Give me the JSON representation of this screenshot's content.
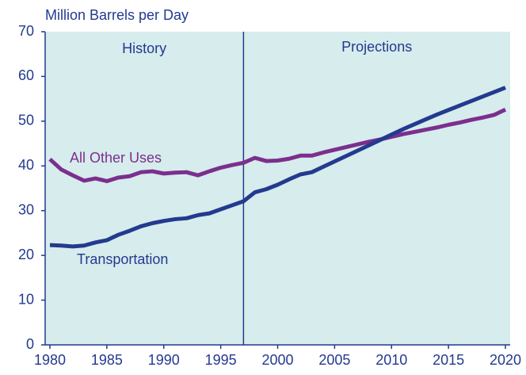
{
  "chart_data": {
    "type": "line",
    "y_label": "Million Barrels per Day",
    "annotations": [
      "History",
      "Projections"
    ],
    "divider": 1997,
    "x": [
      1980,
      1981,
      1982,
      1983,
      1984,
      1985,
      1986,
      1987,
      1988,
      1989,
      1990,
      1991,
      1992,
      1993,
      1994,
      1995,
      1996,
      1997,
      1998,
      1999,
      2000,
      2001,
      2002,
      2003,
      2004,
      2005,
      2006,
      2007,
      2008,
      2009,
      2010,
      2011,
      2012,
      2013,
      2014,
      2015,
      2016,
      2017,
      2018,
      2019,
      2020
    ],
    "series": [
      {
        "name": "All Other Uses",
        "color": "#7b2f8e",
        "values": [
          41.5,
          39.2,
          37.9,
          36.7,
          37.2,
          36.6,
          37.4,
          37.7,
          38.6,
          38.8,
          38.3,
          38.5,
          38.6,
          37.9,
          38.8,
          39.6,
          40.2,
          40.7,
          41.8,
          41.1,
          41.2,
          41.6,
          42.3,
          42.3,
          43.0,
          43.6,
          44.2,
          44.8,
          45.4,
          45.9,
          46.5,
          47.1,
          47.6,
          48.1,
          48.6,
          49.2,
          49.7,
          50.3,
          50.8,
          51.4,
          52.6
        ]
      },
      {
        "name": "Transportation",
        "color": "#233a8f",
        "values": [
          22.3,
          22.2,
          22.0,
          22.2,
          22.9,
          23.4,
          24.6,
          25.5,
          26.5,
          27.2,
          27.7,
          28.1,
          28.3,
          29.0,
          29.4,
          30.3,
          31.2,
          32.1,
          34.1,
          34.8,
          35.8,
          37.0,
          38.1,
          38.6,
          39.8,
          41.0,
          42.2,
          43.4,
          44.6,
          45.8,
          47.0,
          48.2,
          49.3,
          50.4,
          51.5,
          52.5,
          53.5,
          54.5,
          55.5,
          56.5,
          57.5
        ]
      }
    ],
    "xlim": [
      1980,
      2020
    ],
    "xticks": [
      1980,
      1985,
      1990,
      1995,
      2000,
      2005,
      2010,
      2015,
      2020
    ],
    "ylim": [
      0,
      70
    ],
    "yticks": [
      0,
      10,
      20,
      30,
      40,
      50,
      60,
      70
    ]
  }
}
